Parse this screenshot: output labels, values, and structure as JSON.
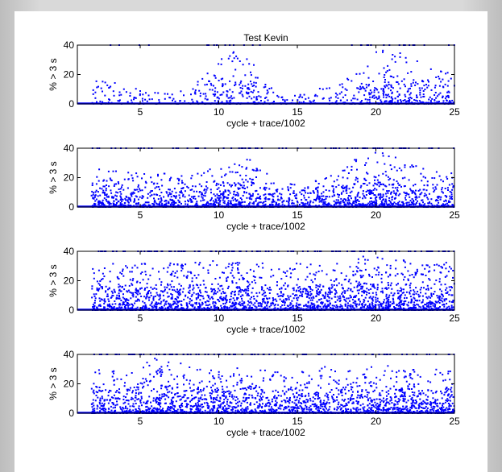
{
  "figure": {
    "background": "#ffffff",
    "marker_color": "#0000ff"
  },
  "chart_data": [
    {
      "type": "scatter",
      "title": "Test Kevin",
      "xlabel": "cycle + trace/1002",
      "ylabel": "% > 3 s",
      "xlim": [
        1,
        25
      ],
      "ylim": [
        0,
        40
      ],
      "xticks": [
        5,
        10,
        15,
        20,
        25
      ],
      "yticks": [
        0,
        20,
        40
      ],
      "grid": false,
      "density_profile": [
        [
          1,
          0.0
        ],
        [
          2,
          0.55
        ],
        [
          3,
          0.45
        ],
        [
          4,
          0.35
        ],
        [
          5,
          0.25
        ],
        [
          6,
          0.2
        ],
        [
          7,
          0.2
        ],
        [
          8,
          0.25
        ],
        [
          9,
          0.55
        ],
        [
          10,
          0.85
        ],
        [
          11,
          0.95
        ],
        [
          12,
          0.85
        ],
        [
          13,
          0.35
        ],
        [
          14,
          0.2
        ],
        [
          15,
          0.2
        ],
        [
          16,
          0.25
        ],
        [
          17,
          0.3
        ],
        [
          18,
          0.45
        ],
        [
          19,
          0.6
        ],
        [
          20,
          0.95
        ],
        [
          21,
          1.0
        ],
        [
          22,
          0.9
        ],
        [
          23,
          0.75
        ],
        [
          24,
          0.65
        ],
        [
          25,
          0.6
        ]
      ]
    },
    {
      "type": "scatter",
      "title": "",
      "xlabel": "cycle + trace/1002",
      "ylabel": "% > 3 s",
      "xlim": [
        1,
        25
      ],
      "ylim": [
        0,
        40
      ],
      "xticks": [
        5,
        10,
        15,
        20,
        25
      ],
      "yticks": [
        0,
        20,
        40
      ],
      "grid": false,
      "density_profile": [
        [
          1,
          0.0
        ],
        [
          2,
          0.75
        ],
        [
          3,
          0.7
        ],
        [
          4,
          0.65
        ],
        [
          5,
          0.6
        ],
        [
          6,
          0.6
        ],
        [
          7,
          0.6
        ],
        [
          8,
          0.6
        ],
        [
          9,
          0.65
        ],
        [
          10,
          0.75
        ],
        [
          11,
          0.9
        ],
        [
          12,
          0.85
        ],
        [
          13,
          0.6
        ],
        [
          14,
          0.55
        ],
        [
          15,
          0.5
        ],
        [
          16,
          0.5
        ],
        [
          17,
          0.55
        ],
        [
          18,
          0.75
        ],
        [
          19,
          0.9
        ],
        [
          20,
          1.0
        ],
        [
          21,
          0.95
        ],
        [
          22,
          0.8
        ],
        [
          23,
          0.7
        ],
        [
          24,
          0.65
        ],
        [
          25,
          0.6
        ]
      ]
    },
    {
      "type": "scatter",
      "title": "",
      "xlabel": "cycle + trace/1002",
      "ylabel": "% > 3 s",
      "xlim": [
        1,
        25
      ],
      "ylim": [
        0,
        40
      ],
      "xticks": [
        5,
        10,
        15,
        20,
        25
      ],
      "yticks": [
        0,
        20,
        40
      ],
      "grid": false,
      "density_profile": [
        [
          1,
          0.0
        ],
        [
          2,
          0.85
        ],
        [
          3,
          0.85
        ],
        [
          4,
          0.85
        ],
        [
          5,
          0.85
        ],
        [
          6,
          0.9
        ],
        [
          7,
          0.85
        ],
        [
          8,
          0.85
        ],
        [
          9,
          0.85
        ],
        [
          10,
          0.9
        ],
        [
          11,
          0.9
        ],
        [
          12,
          0.85
        ],
        [
          13,
          0.85
        ],
        [
          14,
          0.85
        ],
        [
          15,
          0.85
        ],
        [
          16,
          0.85
        ],
        [
          17,
          0.85
        ],
        [
          18,
          0.9
        ],
        [
          19,
          0.95
        ],
        [
          20,
          1.0
        ],
        [
          21,
          0.95
        ],
        [
          22,
          0.9
        ],
        [
          23,
          0.85
        ],
        [
          24,
          0.85
        ],
        [
          25,
          0.85
        ]
      ]
    },
    {
      "type": "scatter",
      "title": "",
      "xlabel": "cycle + trace/1002",
      "ylabel": "% > 3 s",
      "xlim": [
        1,
        25
      ],
      "ylim": [
        0,
        40
      ],
      "xticks": [
        5,
        10,
        15,
        20,
        25
      ],
      "yticks": [
        0,
        20,
        40
      ],
      "grid": false,
      "density_profile": [
        [
          1,
          0.0
        ],
        [
          2,
          0.8
        ],
        [
          3,
          0.8
        ],
        [
          4,
          0.85
        ],
        [
          5,
          0.9
        ],
        [
          6,
          1.0
        ],
        [
          7,
          0.95
        ],
        [
          8,
          0.85
        ],
        [
          9,
          0.8
        ],
        [
          10,
          0.8
        ],
        [
          11,
          0.8
        ],
        [
          12,
          0.85
        ],
        [
          13,
          0.8
        ],
        [
          14,
          0.75
        ],
        [
          15,
          0.8
        ],
        [
          16,
          0.8
        ],
        [
          17,
          0.85
        ],
        [
          18,
          0.8
        ],
        [
          19,
          0.8
        ],
        [
          20,
          0.85
        ],
        [
          21,
          0.85
        ],
        [
          22,
          0.8
        ],
        [
          23,
          0.8
        ],
        [
          24,
          0.8
        ],
        [
          25,
          0.75
        ]
      ]
    }
  ]
}
